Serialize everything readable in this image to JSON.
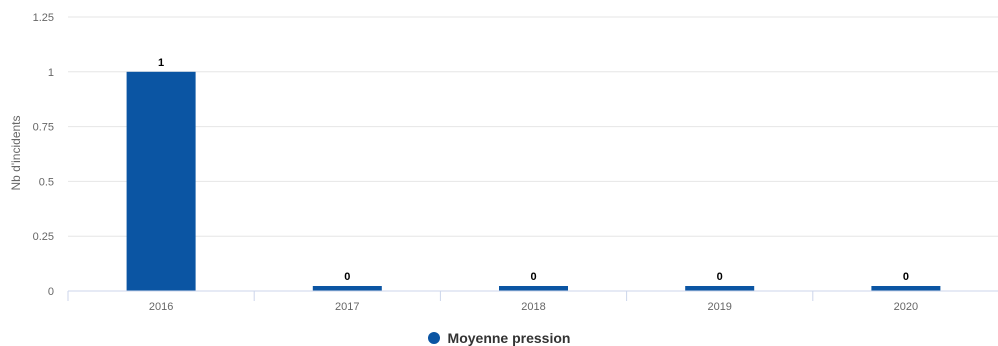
{
  "colors": {
    "series": "#0b55a3",
    "grid": "#e6e6e6",
    "axis": "#ccd6eb",
    "text": "#666666",
    "label": "#000000"
  },
  "chart_data": {
    "type": "bar",
    "title": "",
    "xlabel": "",
    "ylabel": "Nb d'incidents",
    "categories": [
      "2016",
      "2017",
      "2018",
      "2019",
      "2020"
    ],
    "series": [
      {
        "name": "Moyenne pression",
        "values": [
          1,
          0,
          0,
          0,
          0
        ]
      }
    ],
    "ylim": [
      0,
      1.25
    ],
    "yticks": [
      "0",
      "0.25",
      "0.5",
      "0.75",
      "1",
      "1.25"
    ],
    "data_labels": [
      "1",
      "0",
      "0",
      "0",
      "0"
    ],
    "grid": true,
    "legend": "bottom-center"
  }
}
